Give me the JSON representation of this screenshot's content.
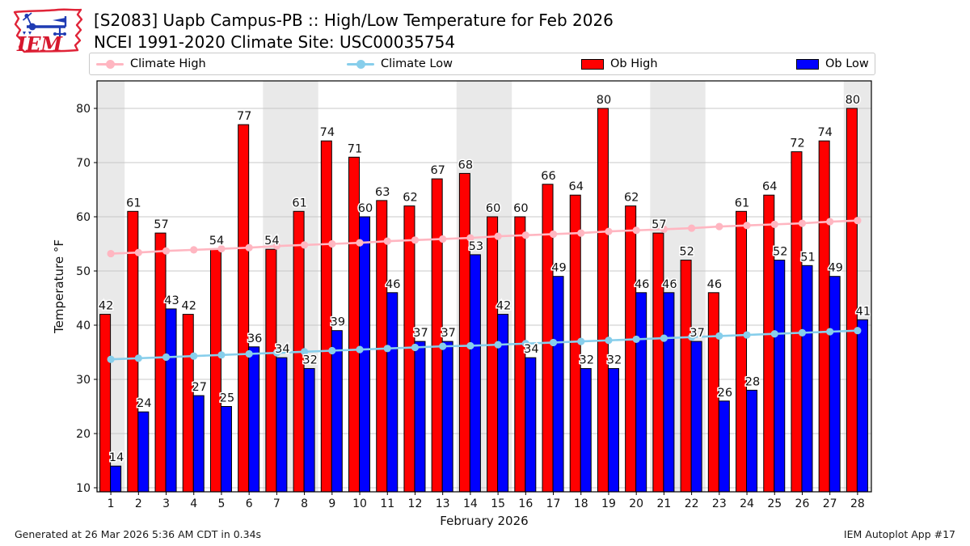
{
  "header": {
    "logo_text": "IEM",
    "title_line1": "[S2083] Uapb Campus-PB :: High/Low Temperature for Feb 2026",
    "title_line2": "NCEI 1991-2020 Climate Site: USC00035754"
  },
  "legend": [
    {
      "label": "Climate High",
      "type": "line",
      "color": "#ffb6c1"
    },
    {
      "label": "Climate Low",
      "type": "line",
      "color": "#87ceeb"
    },
    {
      "label": "Ob High",
      "type": "bar",
      "color": "#ff0000"
    },
    {
      "label": "Ob Low",
      "type": "bar",
      "color": "#0000ff"
    }
  ],
  "chart_data": {
    "type": "bar",
    "title": "[S2083] Uapb Campus-PB :: High/Low Temperature for Feb 2026",
    "subtitle": "NCEI 1991-2020 Climate Site: USC00035754",
    "x": [
      1,
      2,
      3,
      4,
      5,
      6,
      7,
      8,
      9,
      10,
      11,
      12,
      13,
      14,
      15,
      16,
      17,
      18,
      19,
      20,
      21,
      22,
      23,
      24,
      25,
      26,
      27,
      28
    ],
    "series": [
      {
        "name": "Ob High",
        "type": "bar",
        "color": "#ff0000",
        "values": [
          42,
          61,
          57,
          42,
          54,
          77,
          54,
          61,
          74,
          71,
          63,
          62,
          67,
          68,
          60,
          60,
          66,
          64,
          80,
          62,
          57,
          52,
          46,
          61,
          64,
          72,
          74,
          80
        ]
      },
      {
        "name": "Ob Low",
        "type": "bar",
        "color": "#0000ff",
        "values": [
          14,
          24,
          43,
          27,
          25,
          36,
          34,
          32,
          39,
          60,
          46,
          37,
          37,
          53,
          42,
          34,
          49,
          32,
          32,
          46,
          46,
          37,
          26,
          28,
          52,
          51,
          49,
          41
        ]
      },
      {
        "name": "Climate High",
        "type": "line",
        "color": "#ffb6c1",
        "values": [
          53.2,
          53.4,
          53.7,
          53.9,
          54.1,
          54.3,
          54.6,
          54.8,
          55.0,
          55.2,
          55.5,
          55.7,
          55.9,
          56.1,
          56.4,
          56.6,
          56.8,
          57.0,
          57.3,
          57.5,
          57.7,
          57.9,
          58.2,
          58.4,
          58.6,
          58.8,
          59.1,
          59.3
        ]
      },
      {
        "name": "Climate Low",
        "type": "line",
        "color": "#87ceeb",
        "values": [
          33.7,
          33.9,
          34.1,
          34.3,
          34.5,
          34.7,
          34.9,
          35.1,
          35.3,
          35.5,
          35.7,
          35.9,
          36.1,
          36.2,
          36.4,
          36.6,
          36.8,
          37.0,
          37.2,
          37.4,
          37.6,
          37.8,
          38.0,
          38.2,
          38.4,
          38.6,
          38.8,
          39.0
        ]
      }
    ],
    "xlabel": "February 2026",
    "ylabel": "Temperature °F",
    "ylim": [
      9,
      85
    ],
    "yticks": [
      10,
      20,
      30,
      40,
      50,
      60,
      70,
      80
    ],
    "grid": true,
    "legend_position": "top",
    "weekend_bands_days": [
      [
        0.5,
        1.5
      ],
      [
        6.5,
        8.5
      ],
      [
        13.5,
        15.5
      ],
      [
        20.5,
        22.5
      ],
      [
        27.5,
        28.5
      ]
    ],
    "band_color": "#e9e9e9",
    "grid_color": "#c8c8c8"
  },
  "footer": {
    "left": "Generated at 26 Mar 2026 5:36 AM CDT in 0.34s",
    "right": "IEM Autoplot App #17"
  }
}
